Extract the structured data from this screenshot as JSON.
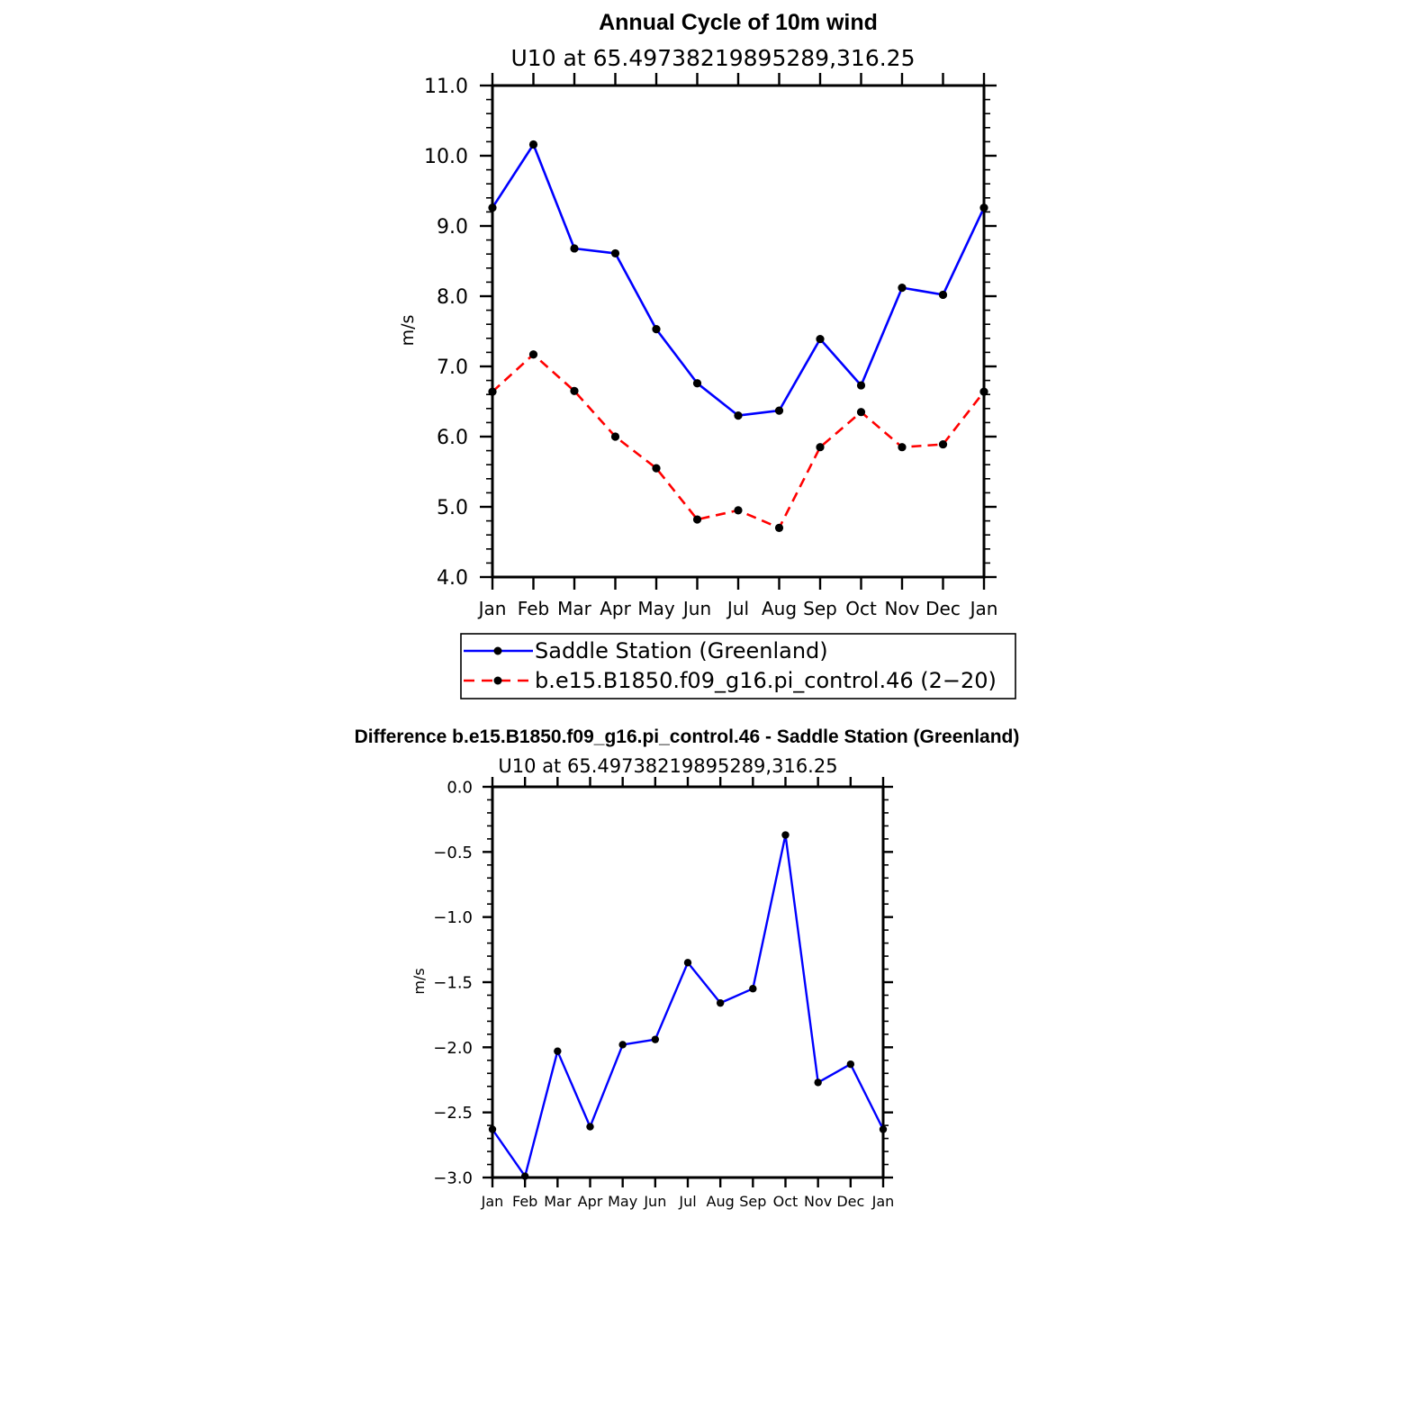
{
  "chart_data": [
    {
      "type": "line",
      "title": "Annual Cycle of 10m wind",
      "subtitle": "U10 at 65.49738219895289,316.25",
      "ylabel": "m/s",
      "xlabel": "",
      "categories": [
        "Jan",
        "Feb",
        "Mar",
        "Apr",
        "May",
        "Jun",
        "Jul",
        "Aug",
        "Sep",
        "Oct",
        "Nov",
        "Dec",
        "Jan"
      ],
      "ylim": [
        4.0,
        11.0
      ],
      "yticks": [
        "4.0",
        "5.0",
        "6.0",
        "7.0",
        "8.0",
        "9.0",
        "10.0",
        "11.0"
      ],
      "grid": false,
      "legend_placement": "below",
      "series": [
        {
          "name": "Saddle Station (Greenland)",
          "color": "#0000ff",
          "dash": "solid",
          "values": [
            9.26,
            10.16,
            8.68,
            8.61,
            7.53,
            6.76,
            6.3,
            6.37,
            7.39,
            6.73,
            8.12,
            8.02,
            9.26
          ]
        },
        {
          "name": "b.e15.B1850.f09_g16.pi_control.46 (2−20)",
          "color": "#ff0000",
          "dash": "dashed",
          "values": [
            6.64,
            7.17,
            6.65,
            6.0,
            5.55,
            4.82,
            4.95,
            4.7,
            5.85,
            6.35,
            5.85,
            5.89,
            6.64
          ]
        }
      ]
    },
    {
      "type": "line",
      "title": "Difference b.e15.B1850.f09_g16.pi_control.46 - Saddle Station (Greenland)",
      "subtitle": "U10 at 65.49738219895289,316.25",
      "ylabel": "m/s",
      "xlabel": "",
      "categories": [
        "Jan",
        "Feb",
        "Mar",
        "Apr",
        "May",
        "Jun",
        "Jul",
        "Aug",
        "Sep",
        "Oct",
        "Nov",
        "Dec",
        "Jan"
      ],
      "ylim": [
        -3.0,
        0.0
      ],
      "yticks": [
        "−3.0",
        "−2.5",
        "−2.0",
        "−1.5",
        "−1.0",
        "−0.5",
        "0.0"
      ],
      "grid": false,
      "series": [
        {
          "color": "#0000ff",
          "dash": "solid",
          "values": [
            -2.63,
            -2.99,
            -2.03,
            -2.61,
            -1.98,
            -1.94,
            -1.35,
            -1.66,
            -1.55,
            -0.37,
            -2.27,
            -2.13,
            -2.63
          ]
        }
      ]
    }
  ]
}
